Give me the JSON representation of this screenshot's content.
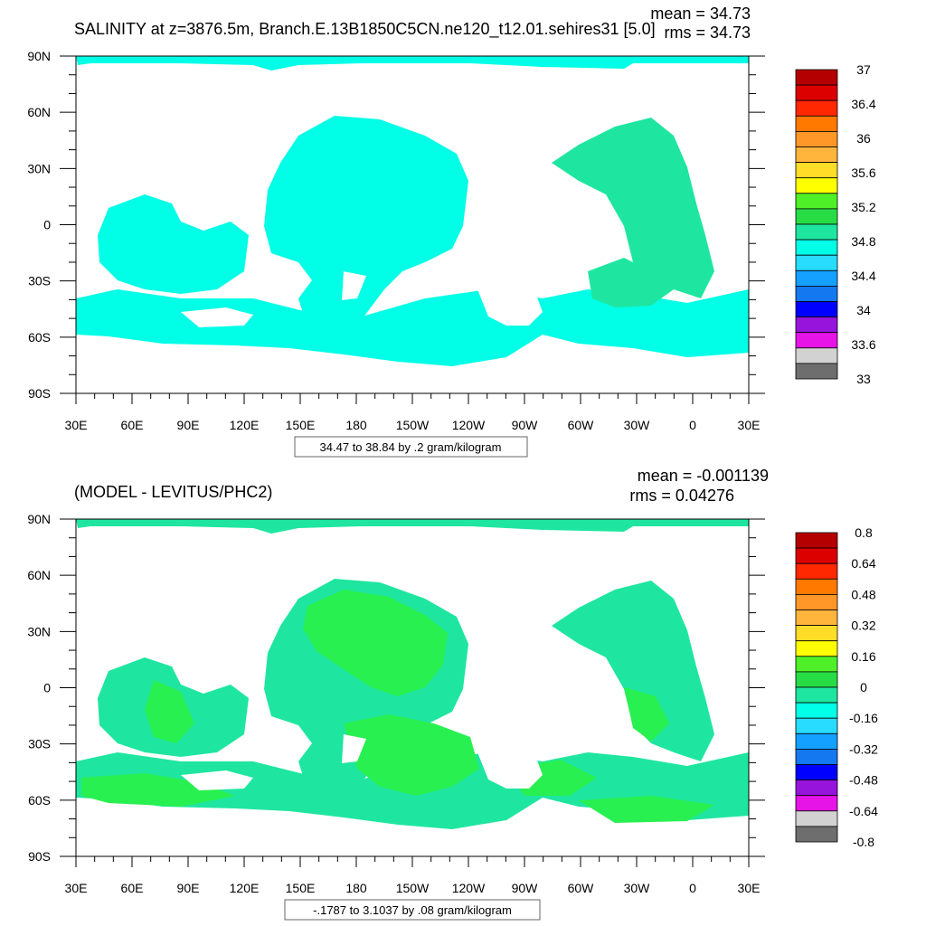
{
  "chart_data": [
    {
      "type": "heatmap",
      "title": "SALINITY at z=3876.5m, Branch.E.13B1850C5CN.ne120_t12.01.sehires31 [5.0]",
      "mean_text": "mean = 34.73",
      "rms_text": "rms = 34.73",
      "x_ticks": [
        "30E",
        "60E",
        "90E",
        "120E",
        "150E",
        "180",
        "150W",
        "120W",
        "90W",
        "60W",
        "30W",
        "0",
        "30E"
      ],
      "y_ticks": [
        "90N",
        "60N",
        "30N",
        "0",
        "30S",
        "60S",
        "90S"
      ],
      "contour_info": "34.47 to 38.84 by .2 gram/kilogram",
      "colorbar": {
        "labels": [
          "37",
          "36.4",
          "36",
          "35.6",
          "35.2",
          "34.8",
          "34.4",
          "34",
          "33.6",
          "33"
        ],
        "colors": [
          "#b40000",
          "#dc0000",
          "#ff2800",
          "#ff7800",
          "#ff9628",
          "#ffb43c",
          "#ffdc28",
          "#ffff00",
          "#50f028",
          "#28dc46",
          "#1ee6a0",
          "#00ffe6",
          "#28dcff",
          "#14a0ff",
          "#1478f0",
          "#0000ff",
          "#9614dc",
          "#e614e6",
          "#d2d2d2",
          "#6e6e6e"
        ]
      },
      "dominant_value_colors": [
        "#00ffe6",
        "#1ee6a0"
      ]
    },
    {
      "type": "heatmap",
      "title": "(MODEL - LEVITUS/PHC2)",
      "mean_text": "mean = -0.001139",
      "rms_text": "rms = 0.04276",
      "x_ticks": [
        "30E",
        "60E",
        "90E",
        "120E",
        "150E",
        "180",
        "150W",
        "120W",
        "90W",
        "60W",
        "30W",
        "0",
        "30E"
      ],
      "y_ticks": [
        "90N",
        "60N",
        "30N",
        "0",
        "30S",
        "60S",
        "90S"
      ],
      "contour_info": "-.1787 to 3.1037 by .08 gram/kilogram",
      "colorbar": {
        "labels": [
          "0.8",
          "0.64",
          "0.48",
          "0.32",
          "0.16",
          "0",
          "-0.16",
          "-0.32",
          "-0.48",
          "-0.64",
          "-0.8"
        ],
        "colors": [
          "#b40000",
          "#dc0000",
          "#ff2800",
          "#ff7800",
          "#ff9628",
          "#ffb43c",
          "#ffdc28",
          "#ffff00",
          "#50f028",
          "#28dc46",
          "#1ee6a0",
          "#00ffe6",
          "#28dcff",
          "#14a0ff",
          "#1478f0",
          "#0000ff",
          "#9614dc",
          "#e614e6",
          "#d2d2d2",
          "#6e6e6e"
        ]
      },
      "dominant_value_colors": [
        "#1ee6a0",
        "#28f050"
      ]
    }
  ]
}
